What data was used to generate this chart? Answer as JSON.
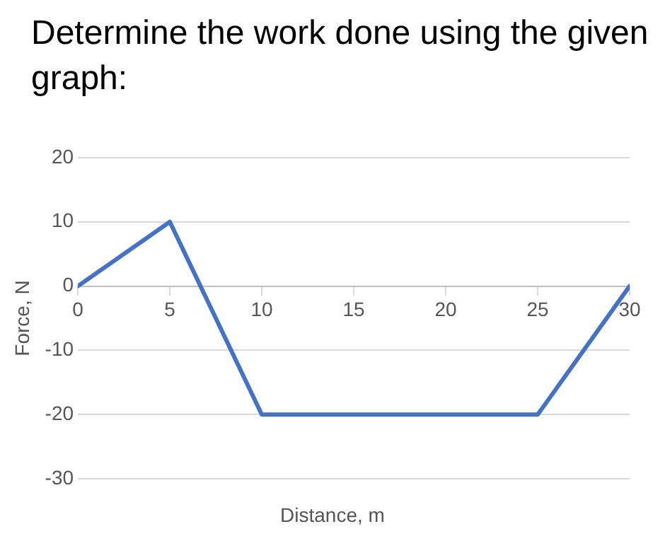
{
  "chart_data": {
    "type": "line",
    "title": "Determine the work done using the given graph:",
    "xlabel": "Distance, m",
    "ylabel": "Force, N",
    "x": [
      0,
      5,
      10,
      25,
      30
    ],
    "series": [
      {
        "color": "#4472c4",
        "values": [
          0,
          10,
          -20,
          -20,
          0
        ]
      }
    ],
    "xlim": [
      0,
      30
    ],
    "xticks": [
      0,
      5,
      10,
      15,
      20,
      25,
      30
    ],
    "ylim": [
      -30,
      20
    ],
    "yticks": [
      -30,
      -20,
      -10,
      0,
      10,
      20
    ],
    "grid": "y",
    "legend": false,
    "marker": "none",
    "line_style": "solid"
  }
}
